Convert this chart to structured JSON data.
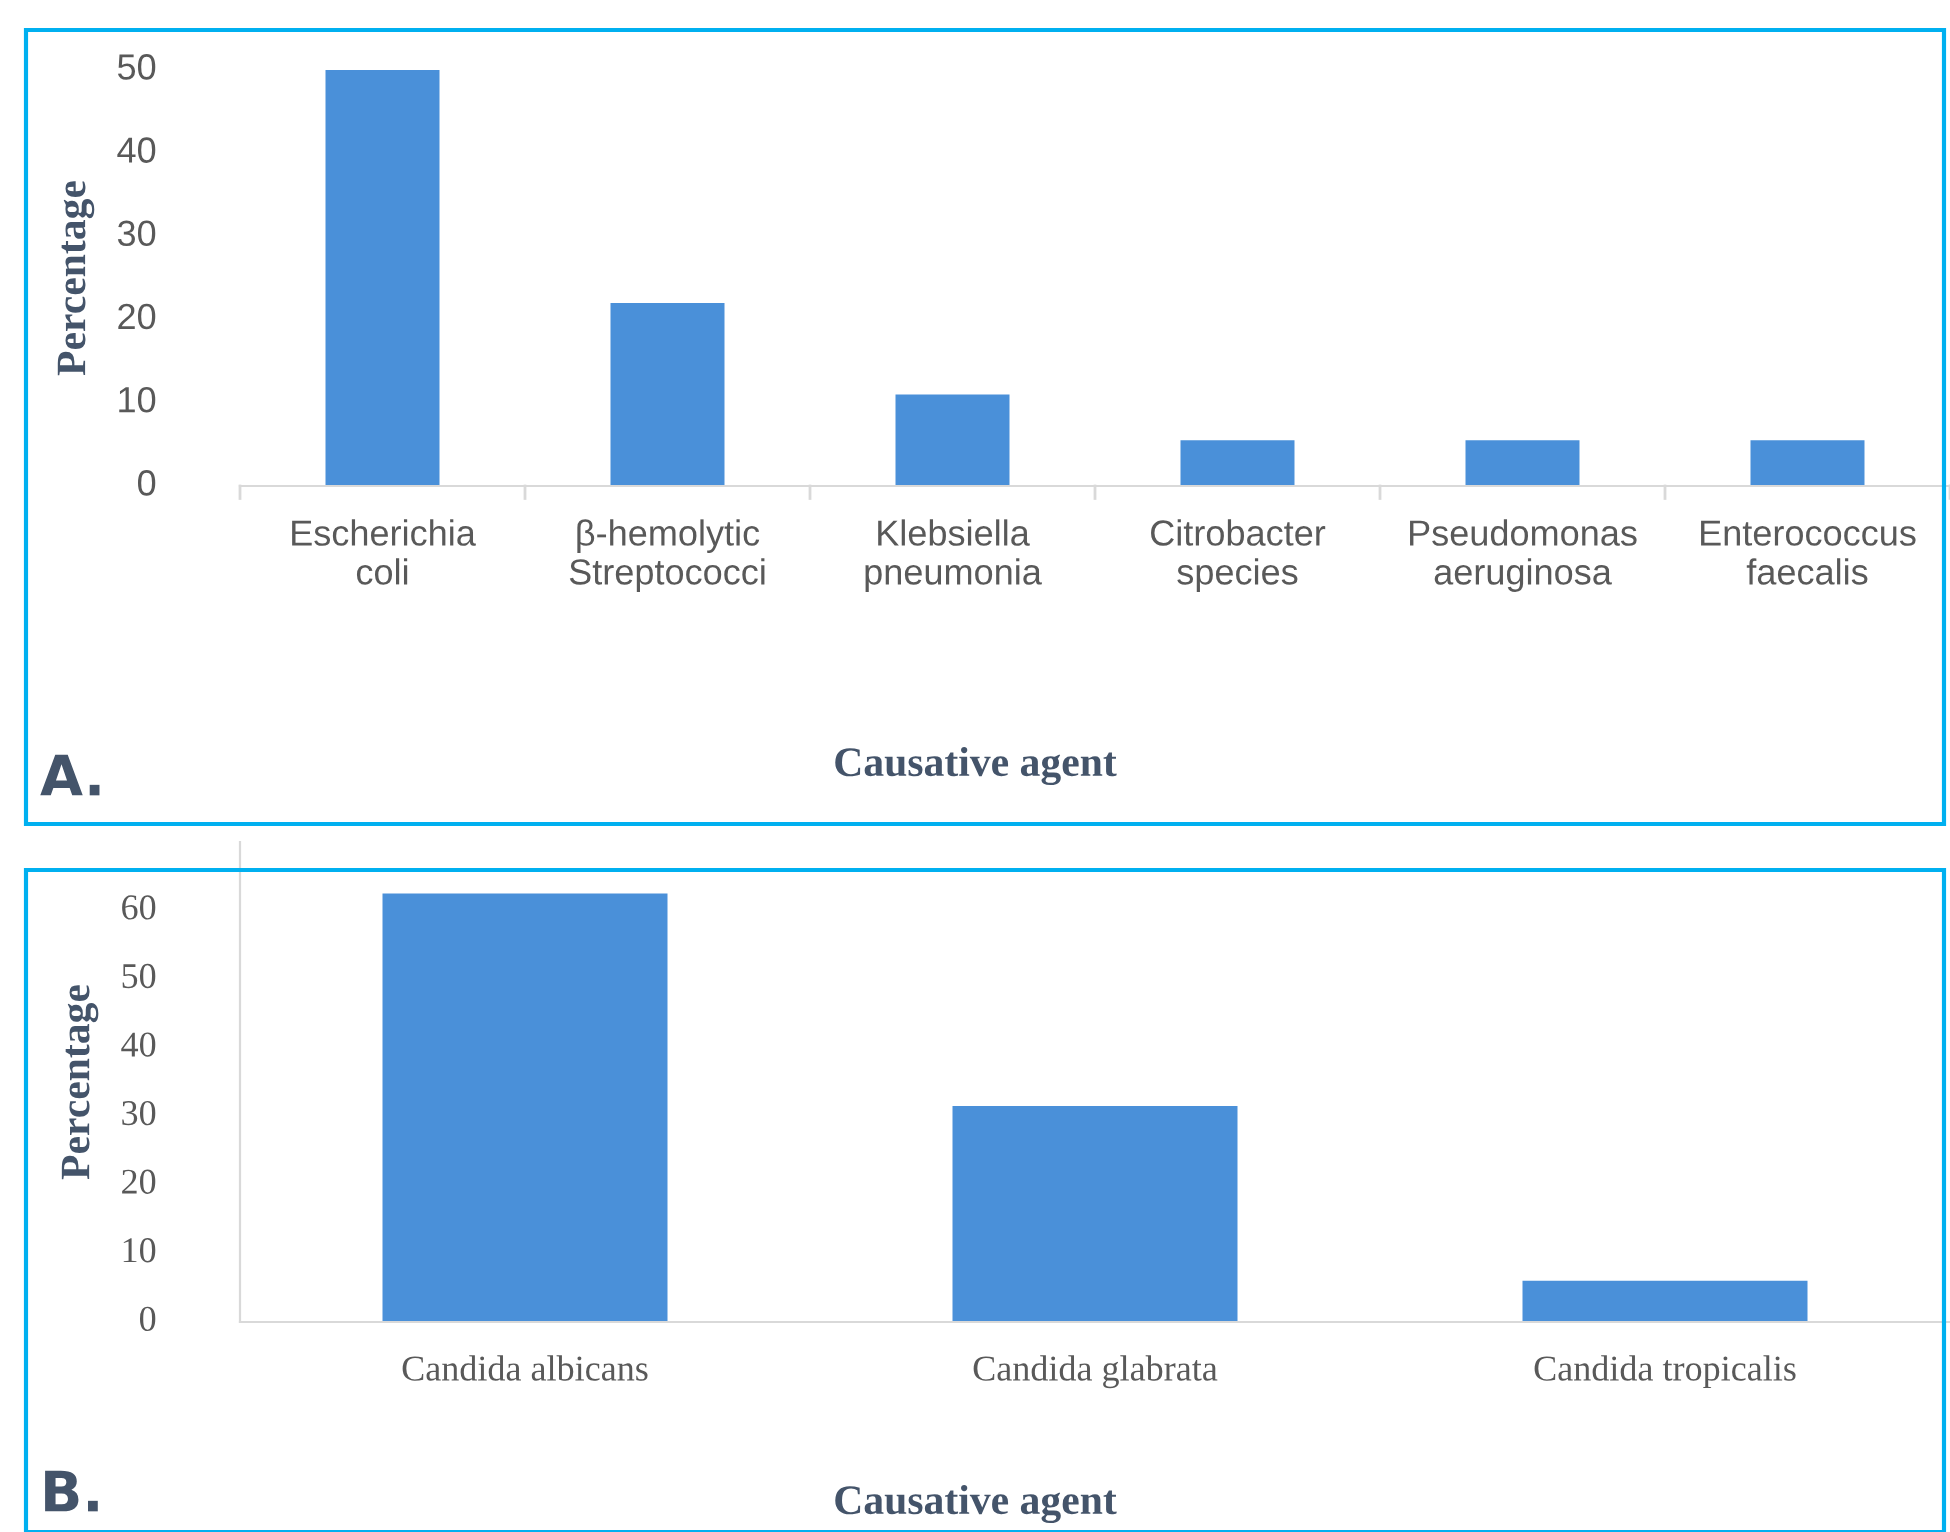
{
  "chart_data": [
    {
      "type": "bar",
      "categories": [
        "Escherichia coli",
        "β-hemolytic Streptococci",
        "Klebsiella pneumonia",
        "Citrobacter species",
        "Pseudomonas aeruginosa",
        "Enterococcus faecalis"
      ],
      "values": [
        50,
        22,
        11,
        5.5,
        5.5,
        5.5
      ],
      "color": "#4a90d9",
      "ylim": [
        0,
        50
      ],
      "yticks": [
        0,
        10,
        20,
        30,
        40,
        50
      ],
      "ylabel": "Percentage",
      "xlabel": "Causative agent",
      "annotations": [
        "A."
      ],
      "grid": false
    },
    {
      "type": "bar",
      "categories": [
        "Candida albicans",
        "Candida glabrata",
        "Candida tropicalis"
      ],
      "values": [
        62.5,
        31.5,
        6
      ],
      "color": "#4a90d9",
      "ylim": [
        0,
        70
      ],
      "yticks": [
        0,
        10,
        20,
        30,
        40,
        50,
        60
      ],
      "ylabel": "Percentage",
      "xlabel": "Causative agent",
      "annotations": [
        "B."
      ],
      "grid": false
    }
  ]
}
